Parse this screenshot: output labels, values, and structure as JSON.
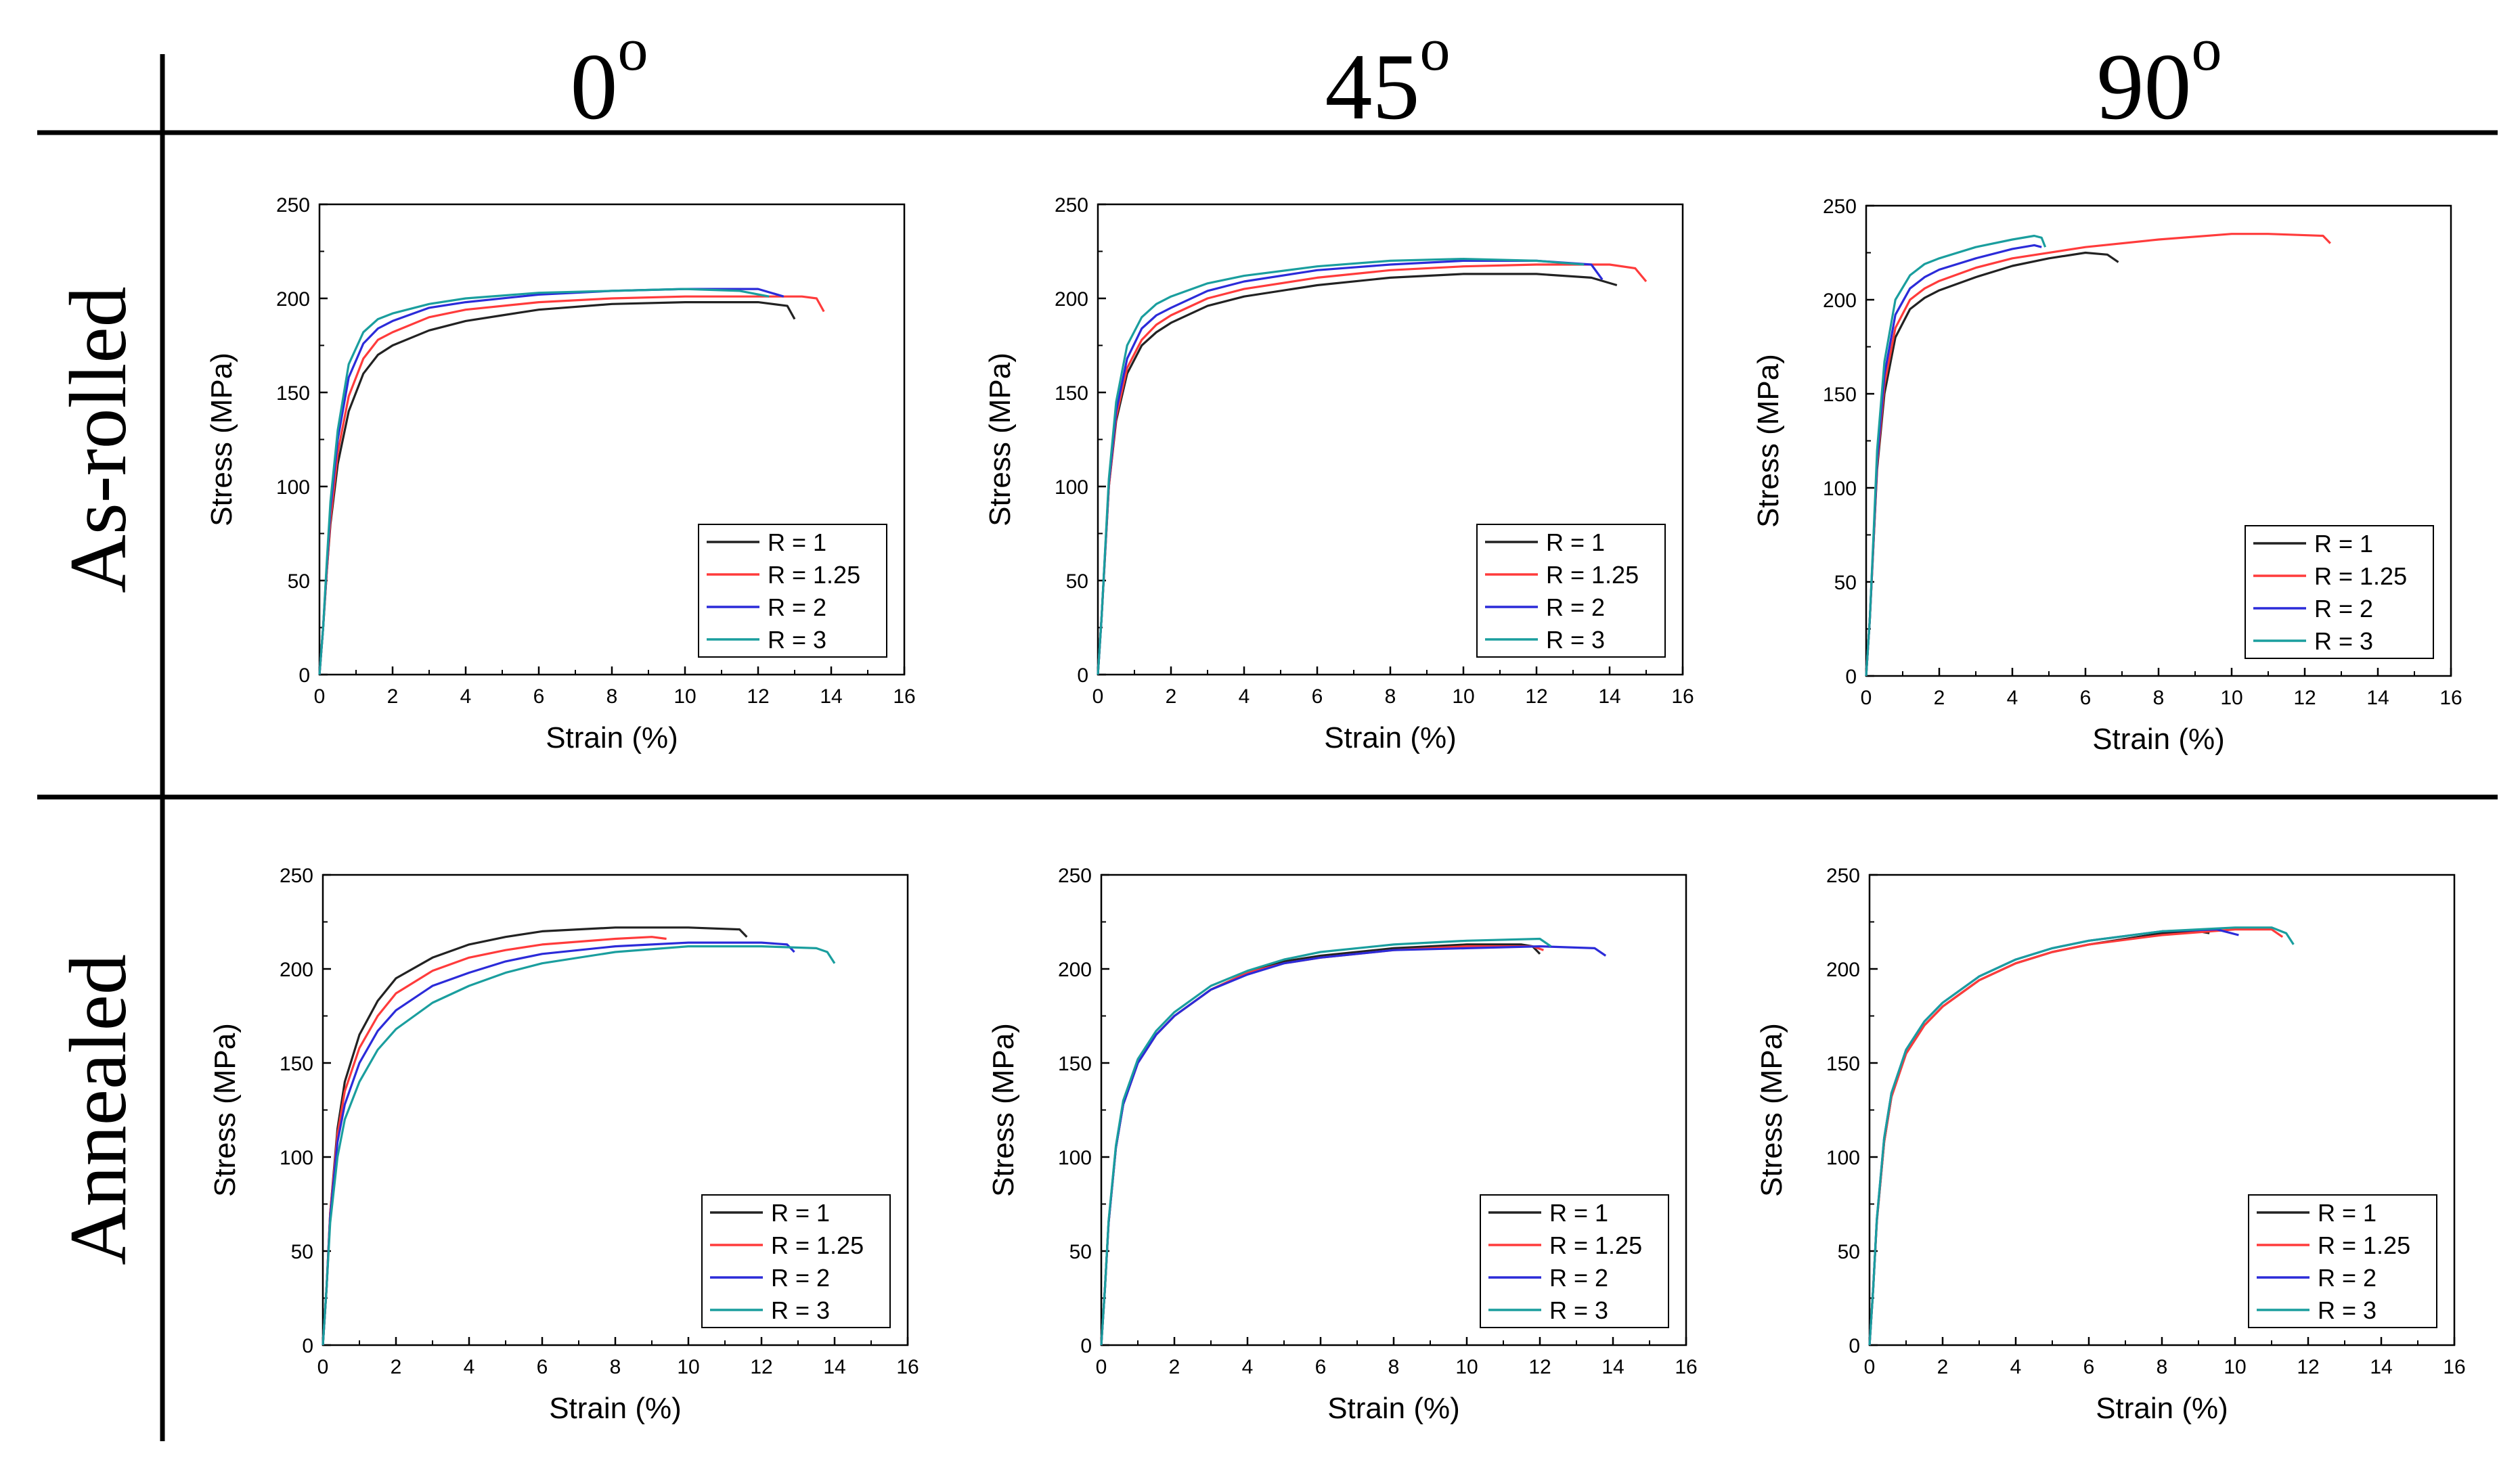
{
  "columns": [
    {
      "label": "0",
      "sup": "o"
    },
    {
      "label": "45",
      "sup": "o"
    },
    {
      "label": "90",
      "sup": "o"
    }
  ],
  "rows": [
    {
      "label": "As-rolled"
    },
    {
      "label": "Annealed"
    }
  ],
  "series_styles": [
    {
      "name": "R = 1",
      "color": "#222222"
    },
    {
      "name": "R = 1.25",
      "color": "#ff3b3b"
    },
    {
      "name": "R = 2",
      "color": "#2b2bd9"
    },
    {
      "name": "R = 3",
      "color": "#1a9e9e"
    }
  ],
  "chart_data": [
    {
      "type": "line",
      "title": "As-rolled 0°",
      "xlabel": "Strain (%)",
      "ylabel": "Stress (MPa)",
      "xlim": [
        0,
        16
      ],
      "ylim": [
        0,
        250
      ],
      "xticks": [
        0,
        2,
        4,
        6,
        8,
        10,
        12,
        14,
        16
      ],
      "yticks": [
        0,
        50,
        100,
        150,
        200,
        250
      ],
      "legend": "bottom-right",
      "series": [
        {
          "name": "R = 1",
          "x": [
            0,
            0.1,
            0.2,
            0.3,
            0.5,
            0.8,
            1.2,
            1.6,
            2,
            3,
            4,
            5,
            6,
            8,
            10,
            12,
            12.8,
            13.0
          ],
          "y": [
            0,
            25,
            55,
            80,
            112,
            140,
            160,
            170,
            175,
            183,
            188,
            191,
            194,
            197,
            198,
            198,
            196,
            189
          ]
        },
        {
          "name": "R = 1.25",
          "x": [
            0,
            0.1,
            0.2,
            0.3,
            0.5,
            0.8,
            1.2,
            1.6,
            2,
            3,
            4,
            6,
            8,
            10,
            12,
            13.2,
            13.6,
            13.8
          ],
          "y": [
            0,
            25,
            55,
            82,
            118,
            148,
            168,
            178,
            182,
            190,
            194,
            198,
            200,
            201,
            201,
            201,
            200,
            193
          ]
        },
        {
          "name": "R = 2",
          "x": [
            0,
            0.1,
            0.2,
            0.3,
            0.5,
            0.8,
            1.2,
            1.6,
            2,
            3,
            4,
            6,
            8,
            10,
            12,
            12.7
          ],
          "y": [
            0,
            25,
            58,
            88,
            125,
            158,
            176,
            184,
            188,
            195,
            198,
            202,
            204,
            205,
            205,
            201
          ]
        },
        {
          "name": "R = 3",
          "x": [
            0,
            0.1,
            0.2,
            0.3,
            0.5,
            0.8,
            1.2,
            1.6,
            2,
            3,
            4,
            6,
            8,
            10,
            11.5,
            12.3
          ],
          "y": [
            0,
            25,
            60,
            92,
            130,
            165,
            182,
            189,
            192,
            197,
            200,
            203,
            204,
            205,
            204,
            201
          ]
        }
      ]
    },
    {
      "type": "line",
      "title": "As-rolled 45°",
      "xlabel": "Strain (%)",
      "ylabel": "Stress (MPa)",
      "xlim": [
        0,
        16
      ],
      "ylim": [
        0,
        250
      ],
      "xticks": [
        0,
        2,
        4,
        6,
        8,
        10,
        12,
        14,
        16
      ],
      "yticks": [
        0,
        50,
        100,
        150,
        200,
        250
      ],
      "legend": "bottom-right",
      "series": [
        {
          "name": "R = 1",
          "x": [
            0,
            0.1,
            0.2,
            0.3,
            0.5,
            0.8,
            1.2,
            1.6,
            2,
            3,
            4,
            6,
            8,
            10,
            12,
            13.5,
            14.2
          ],
          "y": [
            0,
            30,
            65,
            100,
            135,
            160,
            175,
            182,
            187,
            196,
            201,
            207,
            211,
            213,
            213,
            211,
            207
          ]
        },
        {
          "name": "R = 1.25",
          "x": [
            0,
            0.1,
            0.2,
            0.3,
            0.5,
            0.8,
            1.2,
            1.6,
            2,
            3,
            4,
            6,
            8,
            10,
            12,
            14,
            14.7,
            15.0
          ],
          "y": [
            0,
            30,
            65,
            100,
            137,
            163,
            178,
            186,
            191,
            200,
            205,
            211,
            215,
            217,
            218,
            218,
            216,
            209
          ]
        },
        {
          "name": "R = 2",
          "x": [
            0,
            0.1,
            0.2,
            0.3,
            0.5,
            0.8,
            1.2,
            1.6,
            2,
            3,
            4,
            6,
            8,
            10,
            12,
            13.5,
            13.8
          ],
          "y": [
            0,
            30,
            66,
            102,
            140,
            168,
            184,
            191,
            195,
            204,
            209,
            215,
            218,
            220,
            220,
            218,
            210
          ]
        },
        {
          "name": "R = 3",
          "x": [
            0,
            0.1,
            0.2,
            0.3,
            0.5,
            0.8,
            1.2,
            1.6,
            2,
            3,
            4,
            6,
            8,
            10,
            12,
            13.3
          ],
          "y": [
            0,
            30,
            67,
            104,
            145,
            175,
            190,
            197,
            201,
            208,
            212,
            217,
            220,
            221,
            220,
            218
          ]
        }
      ]
    },
    {
      "type": "line",
      "title": "As-rolled 90°",
      "xlabel": "Strain (%)",
      "ylabel": "Stress (MPa)",
      "xlim": [
        0,
        16
      ],
      "ylim": [
        0,
        250
      ],
      "xticks": [
        0,
        2,
        4,
        6,
        8,
        10,
        12,
        14,
        16
      ],
      "yticks": [
        0,
        50,
        100,
        150,
        200,
        250
      ],
      "legend": "bottom-right",
      "series": [
        {
          "name": "R = 1",
          "x": [
            0,
            0.1,
            0.2,
            0.3,
            0.5,
            0.8,
            1.2,
            1.6,
            2,
            3,
            4,
            5,
            6,
            6.6,
            6.9
          ],
          "y": [
            0,
            30,
            70,
            110,
            150,
            180,
            195,
            201,
            205,
            212,
            218,
            222,
            225,
            224,
            220
          ]
        },
        {
          "name": "R = 1.25",
          "x": [
            0,
            0.1,
            0.2,
            0.3,
            0.5,
            0.8,
            1.2,
            1.6,
            2,
            3,
            4,
            6,
            8,
            10,
            11,
            12.5,
            12.7
          ],
          "y": [
            0,
            30,
            70,
            112,
            155,
            185,
            200,
            206,
            210,
            217,
            222,
            228,
            232,
            235,
            235,
            234,
            230
          ]
        },
        {
          "name": "R = 2",
          "x": [
            0,
            0.1,
            0.2,
            0.3,
            0.5,
            0.8,
            1.2,
            1.6,
            2,
            3,
            4,
            4.6,
            4.8
          ],
          "y": [
            0,
            30,
            72,
            115,
            160,
            192,
            206,
            212,
            216,
            222,
            227,
            229,
            228
          ]
        },
        {
          "name": "R = 3",
          "x": [
            0,
            0.1,
            0.2,
            0.3,
            0.5,
            0.8,
            1.2,
            1.6,
            2,
            3,
            4,
            4.6,
            4.8,
            4.9
          ],
          "y": [
            0,
            30,
            74,
            120,
            167,
            200,
            213,
            219,
            222,
            228,
            232,
            234,
            233,
            228
          ]
        }
      ]
    },
    {
      "type": "line",
      "title": "Annealed 0°",
      "xlabel": "Strain (%)",
      "ylabel": "Stress (MPa)",
      "xlim": [
        0,
        16
      ],
      "ylim": [
        0,
        250
      ],
      "xticks": [
        0,
        2,
        4,
        6,
        8,
        10,
        12,
        14,
        16
      ],
      "yticks": [
        0,
        50,
        100,
        150,
        200,
        250
      ],
      "legend": "bottom-right",
      "series": [
        {
          "name": "R = 1",
          "x": [
            0,
            0.1,
            0.2,
            0.4,
            0.6,
            1,
            1.5,
            2,
            3,
            4,
            5,
            6,
            8,
            10,
            11.4,
            11.6
          ],
          "y": [
            0,
            30,
            70,
            115,
            140,
            165,
            183,
            195,
            206,
            213,
            217,
            220,
            222,
            222,
            221,
            217
          ]
        },
        {
          "name": "R = 1.25",
          "x": [
            0,
            0.1,
            0.2,
            0.4,
            0.6,
            1,
            1.5,
            2,
            3,
            4,
            5,
            6,
            8,
            9,
            9.4
          ],
          "y": [
            0,
            30,
            70,
            112,
            135,
            158,
            175,
            187,
            199,
            206,
            210,
            213,
            216,
            217,
            216
          ]
        },
        {
          "name": "R = 2",
          "x": [
            0,
            0.1,
            0.2,
            0.4,
            0.6,
            1,
            1.5,
            2,
            3,
            4,
            5,
            6,
            8,
            10,
            12,
            12.7,
            12.9
          ],
          "y": [
            0,
            30,
            68,
            108,
            128,
            150,
            167,
            178,
            191,
            198,
            204,
            208,
            212,
            214,
            214,
            213,
            209
          ]
        },
        {
          "name": "R = 3",
          "x": [
            0,
            0.1,
            0.2,
            0.4,
            0.6,
            1,
            1.5,
            2,
            3,
            4,
            5,
            6,
            8,
            10,
            12,
            13.5,
            13.8,
            14.0
          ],
          "y": [
            0,
            30,
            65,
            100,
            120,
            140,
            157,
            168,
            182,
            191,
            198,
            203,
            209,
            212,
            212,
            211,
            209,
            203
          ]
        }
      ]
    },
    {
      "type": "line",
      "title": "Annealed 45°",
      "xlabel": "Strain (%)",
      "ylabel": "Stress (MPa)",
      "xlim": [
        0,
        16
      ],
      "ylim": [
        0,
        250
      ],
      "xticks": [
        0,
        2,
        4,
        6,
        8,
        10,
        12,
        14,
        16
      ],
      "yticks": [
        0,
        50,
        100,
        150,
        200,
        250
      ],
      "legend": "bottom-right",
      "series": [
        {
          "name": "R = 1",
          "x": [
            0,
            0.1,
            0.2,
            0.4,
            0.6,
            1,
            1.5,
            2,
            3,
            4,
            5,
            6,
            8,
            10,
            11.5,
            11.8,
            12.0
          ],
          "y": [
            0,
            30,
            65,
            105,
            128,
            150,
            165,
            175,
            189,
            198,
            204,
            207,
            211,
            213,
            213,
            212,
            208
          ]
        },
        {
          "name": "R = 1.25",
          "x": [
            0,
            0.1,
            0.2,
            0.4,
            0.6,
            1,
            1.5,
            2,
            3,
            4,
            5,
            6,
            8,
            10,
            11.8,
            12.1
          ],
          "y": [
            0,
            30,
            65,
            105,
            128,
            150,
            165,
            175,
            189,
            198,
            203,
            206,
            210,
            212,
            212,
            210
          ]
        },
        {
          "name": "R = 2",
          "x": [
            0,
            0.1,
            0.2,
            0.4,
            0.6,
            1,
            1.5,
            2,
            3,
            4,
            5,
            6,
            8,
            10,
            12,
            13.5,
            13.8
          ],
          "y": [
            0,
            30,
            65,
            105,
            128,
            150,
            165,
            175,
            189,
            197,
            203,
            206,
            210,
            211,
            212,
            211,
            207
          ]
        },
        {
          "name": "R = 3",
          "x": [
            0,
            0.1,
            0.2,
            0.4,
            0.6,
            1,
            1.5,
            2,
            3,
            4,
            5,
            6,
            8,
            10,
            12,
            12.3
          ],
          "y": [
            0,
            30,
            66,
            106,
            130,
            152,
            167,
            177,
            191,
            199,
            205,
            209,
            213,
            215,
            216,
            212
          ]
        }
      ]
    },
    {
      "type": "line",
      "title": "Annealed 90°",
      "xlabel": "Strain (%)",
      "ylabel": "Stress (MPa)",
      "xlim": [
        0,
        16
      ],
      "ylim": [
        0,
        250
      ],
      "xticks": [
        0,
        2,
        4,
        6,
        8,
        10,
        12,
        14,
        16
      ],
      "yticks": [
        0,
        50,
        100,
        150,
        200,
        250
      ],
      "legend": "bottom-right",
      "series": [
        {
          "name": "R = 1",
          "x": [
            0,
            0.1,
            0.2,
            0.4,
            0.6,
            1,
            1.5,
            2,
            3,
            4,
            5,
            6,
            8,
            9,
            9.3
          ],
          "y": [
            0,
            30,
            66,
            108,
            132,
            155,
            170,
            180,
            194,
            203,
            209,
            213,
            219,
            220,
            219
          ]
        },
        {
          "name": "R = 1.25",
          "x": [
            0,
            0.1,
            0.2,
            0.4,
            0.6,
            1,
            1.5,
            2,
            3,
            4,
            5,
            6,
            8,
            10,
            11,
            11.3
          ],
          "y": [
            0,
            30,
            66,
            108,
            132,
            155,
            170,
            180,
            194,
            203,
            209,
            213,
            218,
            221,
            221,
            217
          ]
        },
        {
          "name": "R = 2",
          "x": [
            0,
            0.1,
            0.2,
            0.4,
            0.6,
            1,
            1.5,
            2,
            3,
            4,
            5,
            6,
            8,
            9.5,
            10.1
          ],
          "y": [
            0,
            30,
            67,
            110,
            134,
            157,
            172,
            182,
            196,
            205,
            211,
            215,
            220,
            221,
            218
          ]
        },
        {
          "name": "R = 3",
          "x": [
            0,
            0.1,
            0.2,
            0.4,
            0.6,
            1,
            1.5,
            2,
            3,
            4,
            5,
            6,
            8,
            10,
            11,
            11.4,
            11.6
          ],
          "y": [
            0,
            30,
            67,
            110,
            134,
            157,
            172,
            182,
            196,
            205,
            211,
            215,
            220,
            222,
            222,
            219,
            213
          ]
        }
      ]
    }
  ]
}
